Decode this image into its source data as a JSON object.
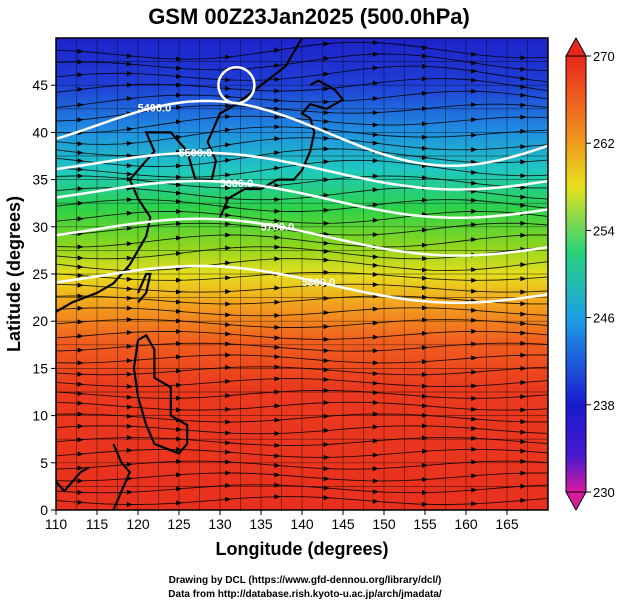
{
  "chart_data": {
    "type": "heatmap",
    "title": "GSM 00Z23Jan2025 (500.0hPa)",
    "xlabel": "Longitude (degrees)",
    "ylabel": "Latitude (degrees)",
    "xlim": [
      110,
      170
    ],
    "ylim": [
      0,
      50
    ],
    "xticks": [
      "110",
      "115",
      "120",
      "125",
      "130",
      "135",
      "140",
      "145",
      "150",
      "155",
      "160",
      "165"
    ],
    "yticks": [
      "0",
      "5",
      "10",
      "15",
      "20",
      "25",
      "30",
      "35",
      "40",
      "45"
    ],
    "colorbar": {
      "min": 230,
      "max": 270,
      "ticks": [
        "230",
        "238",
        "246",
        "254",
        "262",
        "270"
      ],
      "colors": [
        "#d81b9c",
        "#1a1acf",
        "#1ea0e6",
        "#26d27a",
        "#e6e01e",
        "#f07a1e",
        "#e8281e"
      ]
    },
    "temperature_bands_by_latitude": [
      {
        "lat": 48,
        "value": 239
      },
      {
        "lat": 44,
        "value": 243
      },
      {
        "lat": 40,
        "value": 247
      },
      {
        "lat": 35,
        "value": 252
      },
      {
        "lat": 30,
        "value": 257
      },
      {
        "lat": 26,
        "value": 261
      },
      {
        "lat": 22,
        "value": 264
      },
      {
        "lat": 15,
        "value": 266
      },
      {
        "lat": 5,
        "value": 267
      }
    ],
    "height_contours": [
      {
        "label": "5400.0",
        "approx_lat": 40
      },
      {
        "label": "5500.0",
        "approx_lat": 36
      },
      {
        "label": "5600.0",
        "approx_lat": 33
      },
      {
        "label": "5700.0",
        "approx_lat": 29
      },
      {
        "label": "5800.0",
        "approx_lat": 24
      }
    ],
    "low_center": {
      "lon": 132,
      "lat": 45
    },
    "annotations": [
      "Drawing by DCL (https://www.gfd-dennou.org/library/dcl/)",
      "Data from http://database.rish.kyoto-u.ac.jp/arch/jmadata/"
    ]
  }
}
